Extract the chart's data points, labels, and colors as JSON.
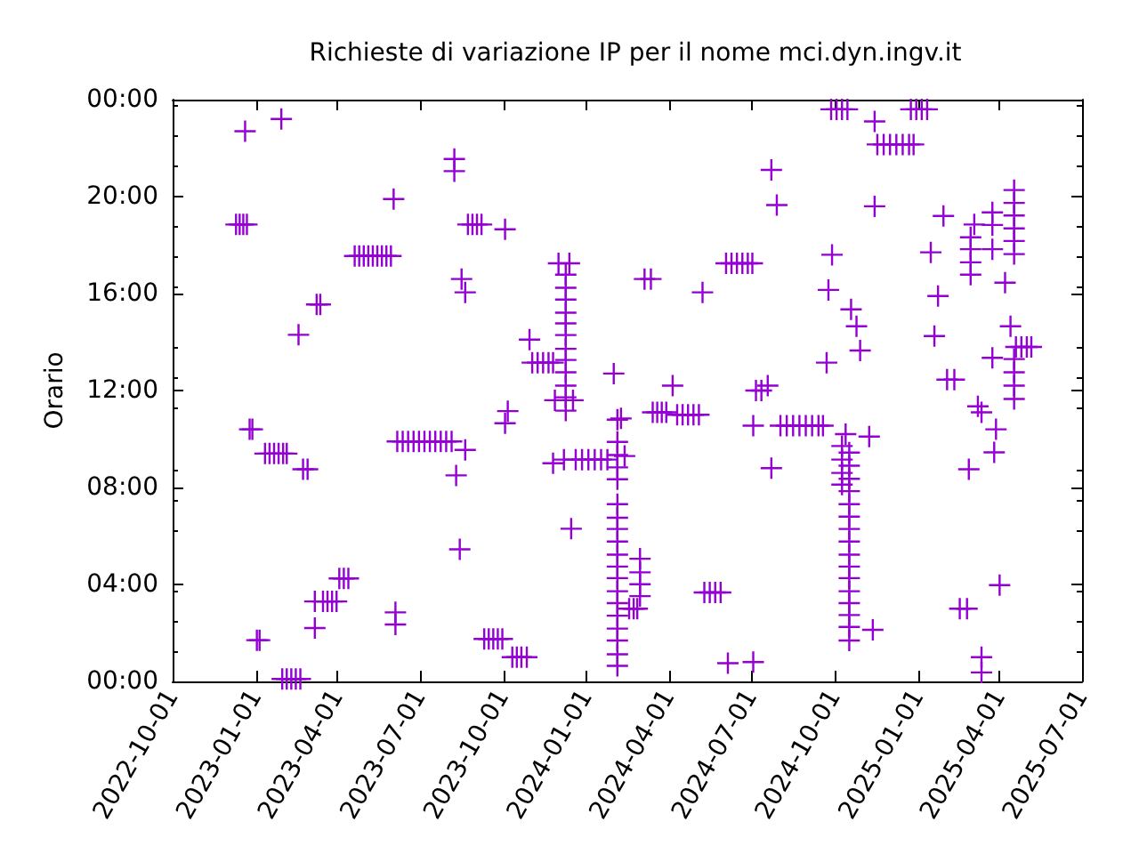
{
  "chart_data": {
    "type": "scatter",
    "title": "Richieste di variazione IP per il nome mci.dyn.ingv.it",
    "ylabel": "Orario",
    "marker": "cross",
    "grid": false,
    "xlim": [
      "2022-10-01",
      "2025-07-01"
    ],
    "xticks": [
      "2022-10-01",
      "2023-01-01",
      "2023-04-01",
      "2023-07-01",
      "2023-10-01",
      "2024-01-01",
      "2024-04-01",
      "2024-07-01",
      "2024-10-01",
      "2025-01-01",
      "2025-04-01",
      "2025-07-01"
    ],
    "ylim": [
      0,
      24
    ],
    "yticks": [
      {
        "value": 0,
        "label": "00:00"
      },
      {
        "value": 4,
        "label": "04:00"
      },
      {
        "value": 8,
        "label": "08:00"
      },
      {
        "value": 12,
        "label": "12:00"
      },
      {
        "value": 16,
        "label": "16:00"
      },
      {
        "value": 20,
        "label": "20:00"
      },
      {
        "value": 24,
        "label": "00:00"
      }
    ],
    "series": [
      {
        "color": "#9400d3",
        "x": [
          "2022-12-10",
          "2022-12-14",
          "2022-12-18",
          "2022-12-22",
          "2022-12-20",
          "2023-01-29",
          "2022-12-25",
          "2022-12-28",
          "2023-01-02",
          "2023-01-05",
          "2023-01-11",
          "2023-01-16",
          "2023-01-21",
          "2023-01-26",
          "2023-01-31",
          "2023-02-04",
          "2023-01-30",
          "2023-02-04",
          "2023-02-09",
          "2023-02-14",
          "2023-02-19",
          "2023-02-17",
          "2023-02-22",
          "2023-02-27",
          "2023-03-07",
          "2023-03-07",
          "2023-03-09",
          "2023-03-13",
          "2023-03-16",
          "2023-03-21",
          "2023-03-26",
          "2023-03-31",
          "2023-04-03",
          "2023-04-08",
          "2023-04-13",
          "2023-04-20",
          "2023-04-25",
          "2023-04-30",
          "2023-05-05",
          "2023-05-10",
          "2023-05-15",
          "2023-05-20",
          "2023-05-25",
          "2023-05-30",
          "2023-06-02",
          "2023-06-04",
          "2023-06-04",
          "2023-06-06",
          "2023-06-12",
          "2023-06-18",
          "2023-06-24",
          "2023-06-30",
          "2023-07-06",
          "2023-07-12",
          "2023-07-18",
          "2023-07-24",
          "2023-07-30",
          "2023-08-05",
          "2023-08-08",
          "2023-08-08",
          "2023-08-10",
          "2023-08-14",
          "2023-08-16",
          "2023-08-20",
          "2023-08-20",
          "2023-08-23",
          "2023-08-28",
          "2023-09-02",
          "2023-09-07",
          "2023-09-10",
          "2023-09-15",
          "2023-09-20",
          "2023-09-25",
          "2023-09-30",
          "2023-10-03",
          "2023-10-06",
          "2023-10-03",
          "2023-10-11",
          "2023-10-16",
          "2023-10-21",
          "2023-10-27",
          "2023-10-30",
          "2023-11-02",
          "2023-11-08",
          "2023-11-14",
          "2023-11-20",
          "2023-11-25",
          "2023-11-27",
          "2023-11-25",
          "2023-12-01",
          "2023-12-13",
          "2023-12-07",
          "2023-12-09",
          "2023-12-09",
          "2023-12-09",
          "2023-12-09",
          "2023-12-09",
          "2023-12-09",
          "2023-12-09",
          "2023-12-09",
          "2023-12-09",
          "2023-12-09",
          "2023-12-09",
          "2023-12-09",
          "2023-12-17",
          "2023-12-15",
          "2023-12-20",
          "2023-12-27",
          "2024-01-03",
          "2024-01-10",
          "2024-01-17",
          "2024-01-24",
          "2024-01-31",
          "2024-02-04",
          "2024-02-04",
          "2024-02-04",
          "2024-02-04",
          "2024-02-04",
          "2024-02-04",
          "2024-02-04",
          "2024-02-04",
          "2024-02-04",
          "2024-02-04",
          "2024-02-04",
          "2024-02-04",
          "2024-02-04",
          "2024-02-04",
          "2024-02-04",
          "2024-02-04",
          "2024-02-04",
          "2024-02-04",
          "2024-02-04",
          "2024-02-08",
          "2024-02-12",
          "2024-02-17",
          "2024-02-22",
          "2024-02-26",
          "2024-02-29",
          "2024-02-29",
          "2024-02-29",
          "2024-02-29",
          "2024-03-05",
          "2024-03-12",
          "2024-03-14",
          "2024-03-19",
          "2024-03-24",
          "2024-03-29",
          "2024-04-05",
          "2024-04-10",
          "2024-04-16",
          "2024-04-22",
          "2024-04-28",
          "2024-05-04",
          "2024-05-08",
          "2024-05-10",
          "2024-05-16",
          "2024-05-22",
          "2024-05-28",
          "2024-06-05",
          "2024-06-03",
          "2024-06-09",
          "2024-06-15",
          "2024-06-21",
          "2024-06-27",
          "2024-07-02",
          "2024-07-03",
          "2024-07-03",
          "2024-07-06",
          "2024-07-12",
          "2024-07-19",
          "2024-07-23",
          "2024-07-23",
          "2024-07-29",
          "2024-08-02",
          "2024-08-09",
          "2024-08-16",
          "2024-08-23",
          "2024-08-30",
          "2024-09-06",
          "2024-09-13",
          "2024-09-18",
          "2024-09-22",
          "2024-09-24",
          "2024-09-28",
          "2024-09-27",
          "2024-10-03",
          "2024-10-09",
          "2024-10-15",
          "2024-10-09",
          "2024-10-09",
          "2024-10-09",
          "2024-10-09",
          "2024-10-13",
          "2024-10-17",
          "2024-10-17",
          "2024-10-17",
          "2024-10-17",
          "2024-10-17",
          "2024-10-17",
          "2024-10-17",
          "2024-10-17",
          "2024-10-17",
          "2024-10-17",
          "2024-10-17",
          "2024-10-17",
          "2024-10-17",
          "2024-10-17",
          "2024-10-17",
          "2024-10-17",
          "2024-10-19",
          "2024-10-25",
          "2024-10-29",
          "2024-11-08",
          "2024-11-12",
          "2024-11-14",
          "2024-11-14",
          "2024-11-17",
          "2024-11-24",
          "2024-12-01",
          "2024-12-08",
          "2024-12-15",
          "2024-12-22",
          "2024-12-27",
          "2024-12-24",
          "2024-12-30",
          "2025-01-05",
          "2025-01-11",
          "2025-01-15",
          "2025-01-19",
          "2025-01-23",
          "2025-01-29",
          "2025-02-02",
          "2025-02-10",
          "2025-02-16",
          "2025-02-24",
          "2025-02-26",
          "2025-02-28",
          "2025-02-28",
          "2025-02-28",
          "2025-02-28",
          "2025-03-04",
          "2025-03-08",
          "2025-03-12",
          "2025-03-12",
          "2025-03-12",
          "2025-03-24",
          "2025-03-24",
          "2025-03-24",
          "2025-03-24",
          "2025-03-26",
          "2025-03-28",
          "2025-04-01",
          "2025-04-07",
          "2025-04-13",
          "2025-04-17",
          "2025-04-17",
          "2025-04-17",
          "2025-04-17",
          "2025-04-17",
          "2025-04-17",
          "2025-04-17",
          "2025-04-17",
          "2025-04-17",
          "2025-04-17",
          "2025-04-19",
          "2025-04-25",
          "2025-05-01",
          "2025-05-06"
        ],
        "values": [
          18.85,
          18.85,
          18.85,
          18.85,
          22.7,
          23.2,
          10.4,
          10.4,
          1.7,
          1.7,
          9.4,
          9.4,
          9.4,
          9.4,
          9.4,
          9.4,
          0.1,
          0.1,
          0.1,
          0.1,
          0.1,
          14.3,
          8.75,
          8.75,
          3.3,
          2.2,
          15.55,
          15.55,
          3.3,
          3.3,
          3.3,
          3.3,
          4.25,
          4.25,
          4.25,
          17.55,
          17.55,
          17.55,
          17.55,
          17.55,
          17.55,
          17.55,
          17.55,
          17.55,
          19.9,
          2.85,
          2.35,
          9.9,
          9.9,
          9.9,
          9.9,
          9.9,
          9.9,
          9.9,
          9.9,
          9.9,
          9.9,
          9.9,
          21.55,
          21.05,
          8.5,
          5.45,
          16.6,
          16.05,
          9.55,
          18.85,
          18.85,
          18.85,
          18.85,
          1.75,
          1.75,
          1.75,
          1.75,
          1.75,
          18.65,
          11.15,
          10.65,
          1.0,
          1.0,
          1.0,
          1.0,
          14.1,
          13.15,
          13.15,
          13.15,
          13.15,
          13.15,
          11.6,
          9.0,
          17.25,
          17.25,
          9.15,
          16.78,
          16.24,
          15.75,
          15.21,
          14.77,
          14.29,
          13.72,
          13.26,
          12.75,
          12.2,
          11.72,
          11.17,
          11.6,
          6.3,
          9.15,
          9.15,
          9.15,
          9.15,
          9.15,
          9.15,
          12.7,
          10.8,
          9.88,
          9.34,
          8.83,
          8.34,
          7.31,
          6.75,
          6.29,
          5.77,
          5.23,
          4.74,
          4.26,
          3.72,
          3.23,
          2.71,
          2.18,
          1.69,
          1.12,
          0.64,
          10.85,
          9.3,
          3.0,
          3.0,
          3.0,
          5.06,
          4.5,
          4.01,
          3.52,
          16.6,
          16.6,
          11.1,
          11.1,
          11.1,
          11.1,
          12.2,
          11.0,
          11.0,
          11.0,
          11.0,
          11.0,
          16.05,
          3.67,
          3.67,
          3.67,
          3.67,
          0.75,
          17.25,
          17.25,
          17.25,
          17.25,
          17.25,
          17.25,
          0.8,
          10.55,
          12.0,
          12.0,
          12.2,
          21.1,
          8.8,
          19.65,
          10.55,
          10.55,
          10.55,
          10.55,
          10.55,
          10.55,
          10.55,
          10.55,
          13.15,
          16.15,
          17.6,
          23.6,
          23.6,
          23.6,
          23.6,
          9.71,
          9.15,
          8.6,
          8.12,
          10.2,
          9.44,
          8.9,
          8.36,
          7.85,
          7.31,
          6.8,
          6.29,
          5.77,
          5.23,
          4.74,
          4.26,
          3.72,
          3.23,
          2.74,
          2.25,
          1.69,
          15.35,
          14.65,
          13.65,
          10.1,
          2.13,
          23.1,
          19.6,
          22.15,
          22.15,
          22.15,
          22.15,
          22.15,
          22.15,
          22.15,
          23.6,
          23.6,
          23.6,
          23.6,
          17.7,
          14.25,
          15.9,
          19.2,
          12.45,
          12.45,
          3.0,
          3.0,
          8.75,
          18.32,
          17.83,
          17.29,
          16.78,
          18.85,
          11.35,
          11.1,
          1.0,
          0.37,
          19.35,
          18.83,
          17.83,
          13.35,
          9.45,
          10.4,
          3.97,
          16.45,
          14.65,
          20.27,
          19.74,
          19.22,
          18.69,
          18.17,
          17.63,
          13.3,
          12.75,
          12.2,
          11.65,
          13.8,
          13.8,
          13.8,
          13.8
        ]
      }
    ]
  }
}
